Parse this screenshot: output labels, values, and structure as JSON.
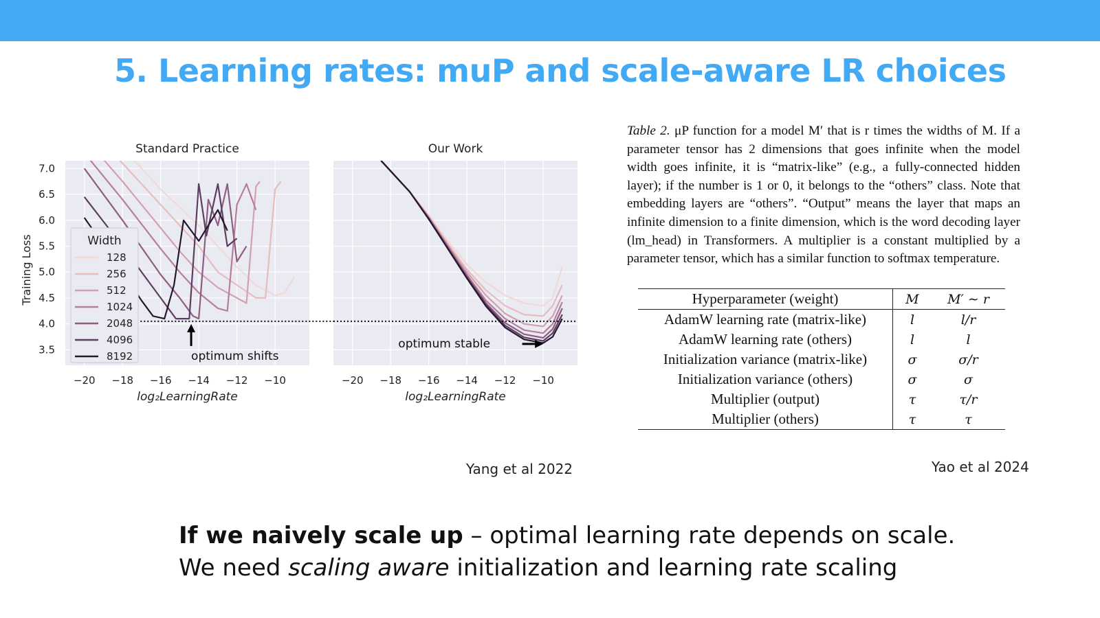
{
  "slide": {
    "title": "5. Learning rates: muP and scale-aware LR choices",
    "cite_left": "Yang et al 2022",
    "cite_right": "Yao et al 2024",
    "bottom_line1_bold": "If we naively scale up",
    "bottom_line1_rest": " – optimal learning rate depends on scale.",
    "bottom_line2_pre": "We need ",
    "bottom_line2_italic": "scaling aware",
    "bottom_line2_post": " initialization and learning rate scaling",
    "accent": "#42a9f5"
  },
  "caption": {
    "label": "Table 2.",
    "text": " μP function for a model M′ that is r times the widths of M. If a parameter tensor has 2 dimensions that goes infinite when the model width goes infinite, it is “matrix-like” (e.g., a fully-connected hidden layer); if the number is 1 or 0, it belongs to the “others” class. Note that embedding layers are “others”. “Output” means the layer that maps an infinite dimension to a finite dimension, which is the word decoding layer (lm_head) in Transformers. A multiplier is a constant multiplied by a parameter tensor, which has a similar function to softmax temperature."
  },
  "table": {
    "headers": [
      "Hyperparameter (weight)",
      "M",
      "M′ ∼ r"
    ],
    "rows": [
      [
        "AdamW learning rate (matrix-like)",
        "l",
        "l/r"
      ],
      [
        "AdamW learning rate (others)",
        "l",
        "l"
      ],
      [
        "Initialization variance (matrix-like)",
        "σ",
        "σ/r"
      ],
      [
        "Initialization variance (others)",
        "σ",
        "σ"
      ],
      [
        "Multiplier (output)",
        "τ",
        "τ/r"
      ],
      [
        "Multiplier (others)",
        "τ",
        "τ"
      ]
    ]
  },
  "chart_data": [
    {
      "type": "line",
      "title": "Standard Practice",
      "xlabel": "log₂LearningRate",
      "ylabel": "Training Loss",
      "xlim": [
        -21,
        -8.2
      ],
      "ylim": [
        3.2,
        7.15
      ],
      "xticks": [
        "−20",
        "−18",
        "−16",
        "−14",
        "−12",
        "−10"
      ],
      "xtick_values": [
        -20,
        -18,
        -16,
        -14,
        -12,
        -10
      ],
      "yticks": [
        "7.0",
        "6.5",
        "6.0",
        "5.5",
        "5.0",
        "4.5",
        "4.0",
        "3.5"
      ],
      "ytick_values": [
        7.0,
        6.5,
        6.0,
        5.5,
        5.0,
        4.5,
        4.0,
        3.5
      ],
      "legend_title": "Width",
      "legend_position": "left",
      "reference_line_y": 4.05,
      "annotation": "optimum shifts",
      "series": [
        {
          "name": "128",
          "color": "#f1d9d5",
          "values": [
            [
              -20,
              8.2
            ],
            [
              -18,
              7.4
            ],
            [
              -16,
              6.6
            ],
            [
              -14,
              5.9
            ],
            [
              -12,
              5.1
            ],
            [
              -11,
              4.75
            ],
            [
              -10,
              4.55
            ],
            [
              -9.5,
              4.6
            ],
            [
              -9,
              4.9
            ]
          ]
        },
        {
          "name": "256",
          "color": "#e6bdbf",
          "values": [
            [
              -20,
              7.9
            ],
            [
              -18,
              7.1
            ],
            [
              -16,
              6.3
            ],
            [
              -14,
              5.5
            ],
            [
              -13,
              5.0
            ],
            [
              -12,
              4.75
            ],
            [
              -11,
              4.5
            ],
            [
              -10.5,
              4.5
            ],
            [
              -10,
              6.6
            ],
            [
              -9.7,
              6.75
            ]
          ]
        },
        {
          "name": "512",
          "color": "#d2a0b0",
          "values": [
            [
              -20,
              7.6
            ],
            [
              -18,
              6.75
            ],
            [
              -16,
              5.85
            ],
            [
              -15,
              5.4
            ],
            [
              -14,
              5.0
            ],
            [
              -13,
              4.7
            ],
            [
              -12,
              4.5
            ],
            [
              -11.5,
              4.4
            ],
            [
              -11,
              6.65
            ],
            [
              -10.8,
              6.75
            ]
          ]
        },
        {
          "name": "1024",
          "color": "#b57e9d",
          "values": [
            [
              -20,
              7.3
            ],
            [
              -18,
              6.4
            ],
            [
              -16,
              5.45
            ],
            [
              -15,
              5.0
            ],
            [
              -14,
              4.6
            ],
            [
              -13,
              4.3
            ],
            [
              -12.5,
              4.25
            ],
            [
              -12,
              6.3
            ],
            [
              -11.5,
              6.7
            ],
            [
              -11,
              6.2
            ]
          ]
        },
        {
          "name": "2048",
          "color": "#8e5d82",
          "values": [
            [
              -20,
              7.0
            ],
            [
              -18,
              6.0
            ],
            [
              -16,
              4.95
            ],
            [
              -15,
              4.5
            ],
            [
              -14.3,
              4.15
            ],
            [
              -14,
              4.1
            ],
            [
              -13.5,
              6.4
            ],
            [
              -13,
              5.9
            ],
            [
              -12.5,
              6.7
            ],
            [
              -12,
              5.2
            ],
            [
              -11.5,
              5.5
            ]
          ]
        },
        {
          "name": "4096",
          "color": "#5c3d60",
          "values": [
            [
              -20,
              6.45
            ],
            [
              -18,
              5.5
            ],
            [
              -16,
              4.5
            ],
            [
              -15.2,
              4.1
            ],
            [
              -14.5,
              4.1
            ],
            [
              -14,
              6.7
            ],
            [
              -13.6,
              5.7
            ],
            [
              -13,
              6.7
            ],
            [
              -12.5,
              5.5
            ],
            [
              -12,
              5.65
            ]
          ]
        },
        {
          "name": "8192",
          "color": "#25182e",
          "values": [
            [
              -20,
              6.05
            ],
            [
              -18,
              5.0
            ],
            [
              -17,
              4.45
            ],
            [
              -16.4,
              4.15
            ],
            [
              -15.8,
              4.1
            ],
            [
              -15.3,
              4.75
            ],
            [
              -14.8,
              6.0
            ],
            [
              -14,
              5.6
            ],
            [
              -13,
              6.2
            ],
            [
              -12.5,
              5.8
            ]
          ]
        }
      ]
    },
    {
      "type": "line",
      "title": "Our Work",
      "xlabel": "log₂LearningRate",
      "ylabel": "",
      "xlim": [
        -21,
        -8.2
      ],
      "ylim": [
        3.2,
        7.15
      ],
      "xticks": [
        "−20",
        "−18",
        "−16",
        "−14",
        "−12",
        "−10"
      ],
      "xtick_values": [
        -20,
        -18,
        -16,
        -14,
        -12,
        -10
      ],
      "reference_line_y": 4.05,
      "annotation": "optimum stable",
      "series": [
        {
          "name": "128",
          "color": "#f1d9d5",
          "values": [
            [
              -18.5,
              7.15
            ],
            [
              -18,
              6.95
            ],
            [
              -17,
              6.55
            ],
            [
              -16,
              6.1
            ],
            [
              -15,
              5.6
            ],
            [
              -14,
              5.15
            ],
            [
              -13,
              4.8
            ],
            [
              -12,
              4.55
            ],
            [
              -11,
              4.4
            ],
            [
              -10,
              4.35
            ],
            [
              -9.5,
              4.5
            ],
            [
              -9,
              5.1
            ]
          ]
        },
        {
          "name": "256",
          "color": "#e6bdbf",
          "values": [
            [
              -18.5,
              7.15
            ],
            [
              -18,
              6.95
            ],
            [
              -17,
              6.55
            ],
            [
              -16,
              6.08
            ],
            [
              -15,
              5.55
            ],
            [
              -14,
              5.05
            ],
            [
              -13,
              4.65
            ],
            [
              -12,
              4.35
            ],
            [
              -11,
              4.18
            ],
            [
              -10,
              4.15
            ],
            [
              -9.5,
              4.35
            ],
            [
              -9,
              4.75
            ]
          ]
        },
        {
          "name": "512",
          "color": "#d2a0b0",
          "values": [
            [
              -18.5,
              7.15
            ],
            [
              -18,
              6.95
            ],
            [
              -17,
              6.55
            ],
            [
              -16,
              6.06
            ],
            [
              -15,
              5.52
            ],
            [
              -14,
              5.0
            ],
            [
              -13,
              4.55
            ],
            [
              -12,
              4.2
            ],
            [
              -11,
              4.0
            ],
            [
              -10,
              3.95
            ],
            [
              -9.5,
              4.15
            ],
            [
              -9,
              4.55
            ]
          ]
        },
        {
          "name": "1024",
          "color": "#b57e9d",
          "values": [
            [
              -18.5,
              7.15
            ],
            [
              -18,
              6.95
            ],
            [
              -17,
              6.55
            ],
            [
              -16,
              6.05
            ],
            [
              -15,
              5.5
            ],
            [
              -14,
              4.95
            ],
            [
              -13,
              4.45
            ],
            [
              -12,
              4.1
            ],
            [
              -11,
              3.88
            ],
            [
              -10,
              3.82
            ],
            [
              -9.5,
              4.0
            ],
            [
              -9,
              4.42
            ]
          ]
        },
        {
          "name": "2048",
          "color": "#8e5d82",
          "values": [
            [
              -18.5,
              7.15
            ],
            [
              -18,
              6.95
            ],
            [
              -17,
              6.55
            ],
            [
              -16,
              6.04
            ],
            [
              -15,
              5.48
            ],
            [
              -14,
              4.92
            ],
            [
              -13,
              4.4
            ],
            [
              -12,
              4.02
            ],
            [
              -11,
              3.8
            ],
            [
              -10,
              3.73
            ],
            [
              -9.5,
              3.9
            ],
            [
              -9,
              4.3
            ]
          ]
        },
        {
          "name": "4096",
          "color": "#5c3d60",
          "values": [
            [
              -18.5,
              7.15
            ],
            [
              -18,
              6.95
            ],
            [
              -17,
              6.55
            ],
            [
              -16,
              6.03
            ],
            [
              -15,
              5.46
            ],
            [
              -14,
              4.9
            ],
            [
              -13,
              4.37
            ],
            [
              -12,
              3.97
            ],
            [
              -11,
              3.74
            ],
            [
              -10,
              3.67
            ],
            [
              -9.5,
              3.82
            ],
            [
              -9,
              4.18
            ]
          ]
        },
        {
          "name": "8192",
          "color": "#25182e",
          "values": [
            [
              -18.5,
              7.15
            ],
            [
              -18,
              6.95
            ],
            [
              -17,
              6.55
            ],
            [
              -16,
              6.02
            ],
            [
              -15,
              5.45
            ],
            [
              -14,
              4.88
            ],
            [
              -13,
              4.34
            ],
            [
              -12,
              3.93
            ],
            [
              -11,
              3.7
            ],
            [
              -10,
              3.63
            ],
            [
              -9.5,
              3.75
            ],
            [
              -9,
              4.1
            ]
          ]
        }
      ]
    }
  ]
}
